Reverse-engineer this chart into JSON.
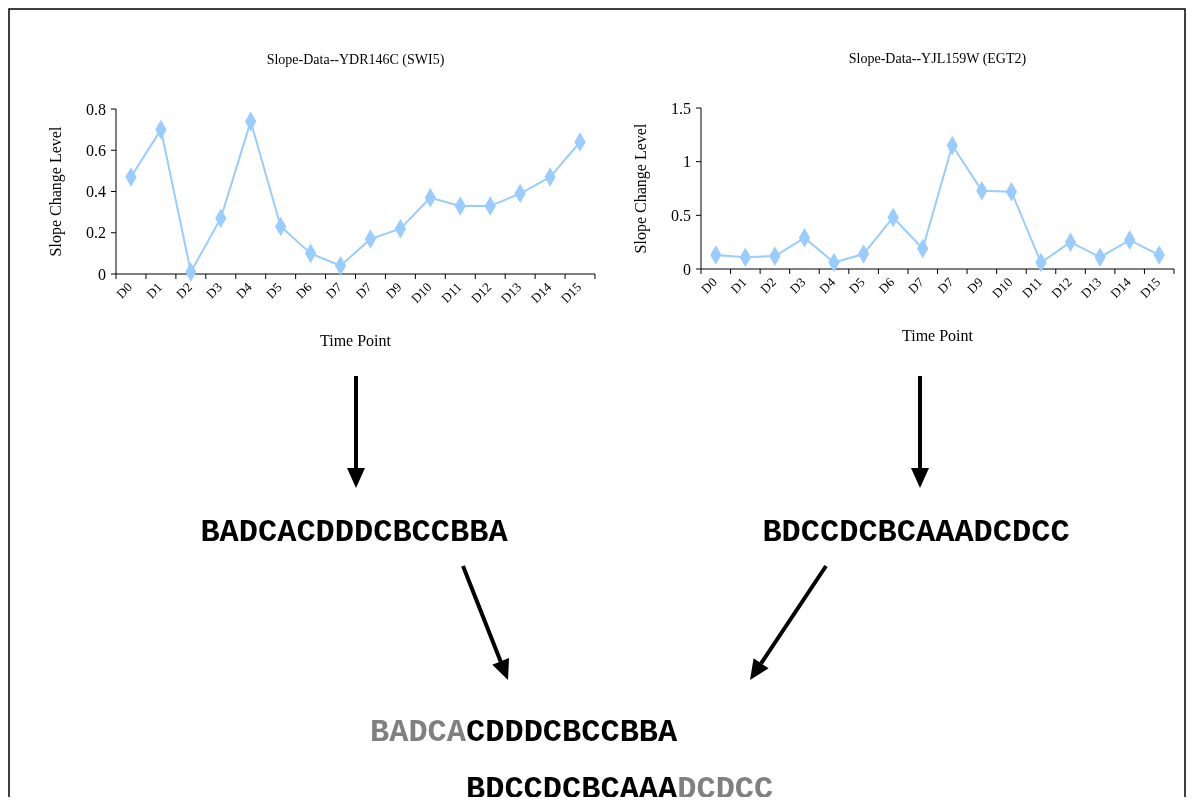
{
  "chart_data": [
    {
      "type": "line",
      "title": "Slope-Data--YDR146C (SWI5)",
      "xlabel": "Time Point",
      "ylabel": "Slope Change Level",
      "categories": [
        "D0",
        "D1",
        "D2",
        "D3",
        "D4",
        "D5",
        "D6",
        "D7",
        "D7",
        "D9",
        "D10",
        "D11",
        "D12",
        "D13",
        "D14",
        "D15"
      ],
      "series": [
        {
          "color": "#99ccff",
          "values": [
            0.47,
            0.7,
            0.01,
            0.27,
            0.74,
            0.23,
            0.1,
            0.04,
            0.17,
            0.22,
            0.37,
            0.33,
            0.33,
            0.39,
            0.47,
            0.64
          ]
        }
      ],
      "ylim": [
        0,
        0.8
      ],
      "yticks": [
        0,
        0.2,
        0.4,
        0.6,
        0.8
      ],
      "marker": "diamond",
      "line_style": "solid"
    },
    {
      "type": "line",
      "title": "Slope-Data--YJL159W (EGT2)",
      "xlabel": "Time Point",
      "ylabel": "Slope Change Level",
      "categories": [
        "D0",
        "D1",
        "D2",
        "D3",
        "D4",
        "D5",
        "D6",
        "D7",
        "D7",
        "D9",
        "D10",
        "D11",
        "D12",
        "D13",
        "D14",
        "D15"
      ],
      "series": [
        {
          "color": "#99ccff",
          "values": [
            0.13,
            0.11,
            0.12,
            0.29,
            0.06,
            0.14,
            0.48,
            0.19,
            1.15,
            0.73,
            0.72,
            0.06,
            0.25,
            0.11,
            0.27,
            0.13
          ]
        }
      ],
      "ylim": [
        0,
        1.5
      ],
      "yticks": [
        0,
        0.5,
        1,
        1.5
      ],
      "marker": "diamond",
      "line_style": "solid"
    },
    {
      "type": "other",
      "annotations": [
        "BADCACDDDCBCCBBA",
        "BDCCDCBCAAADCDCC",
        "BADCA",
        "CDDDCBCCBBA",
        "BDCCDCBCAAA",
        "DCDCC"
      ]
    }
  ]
}
